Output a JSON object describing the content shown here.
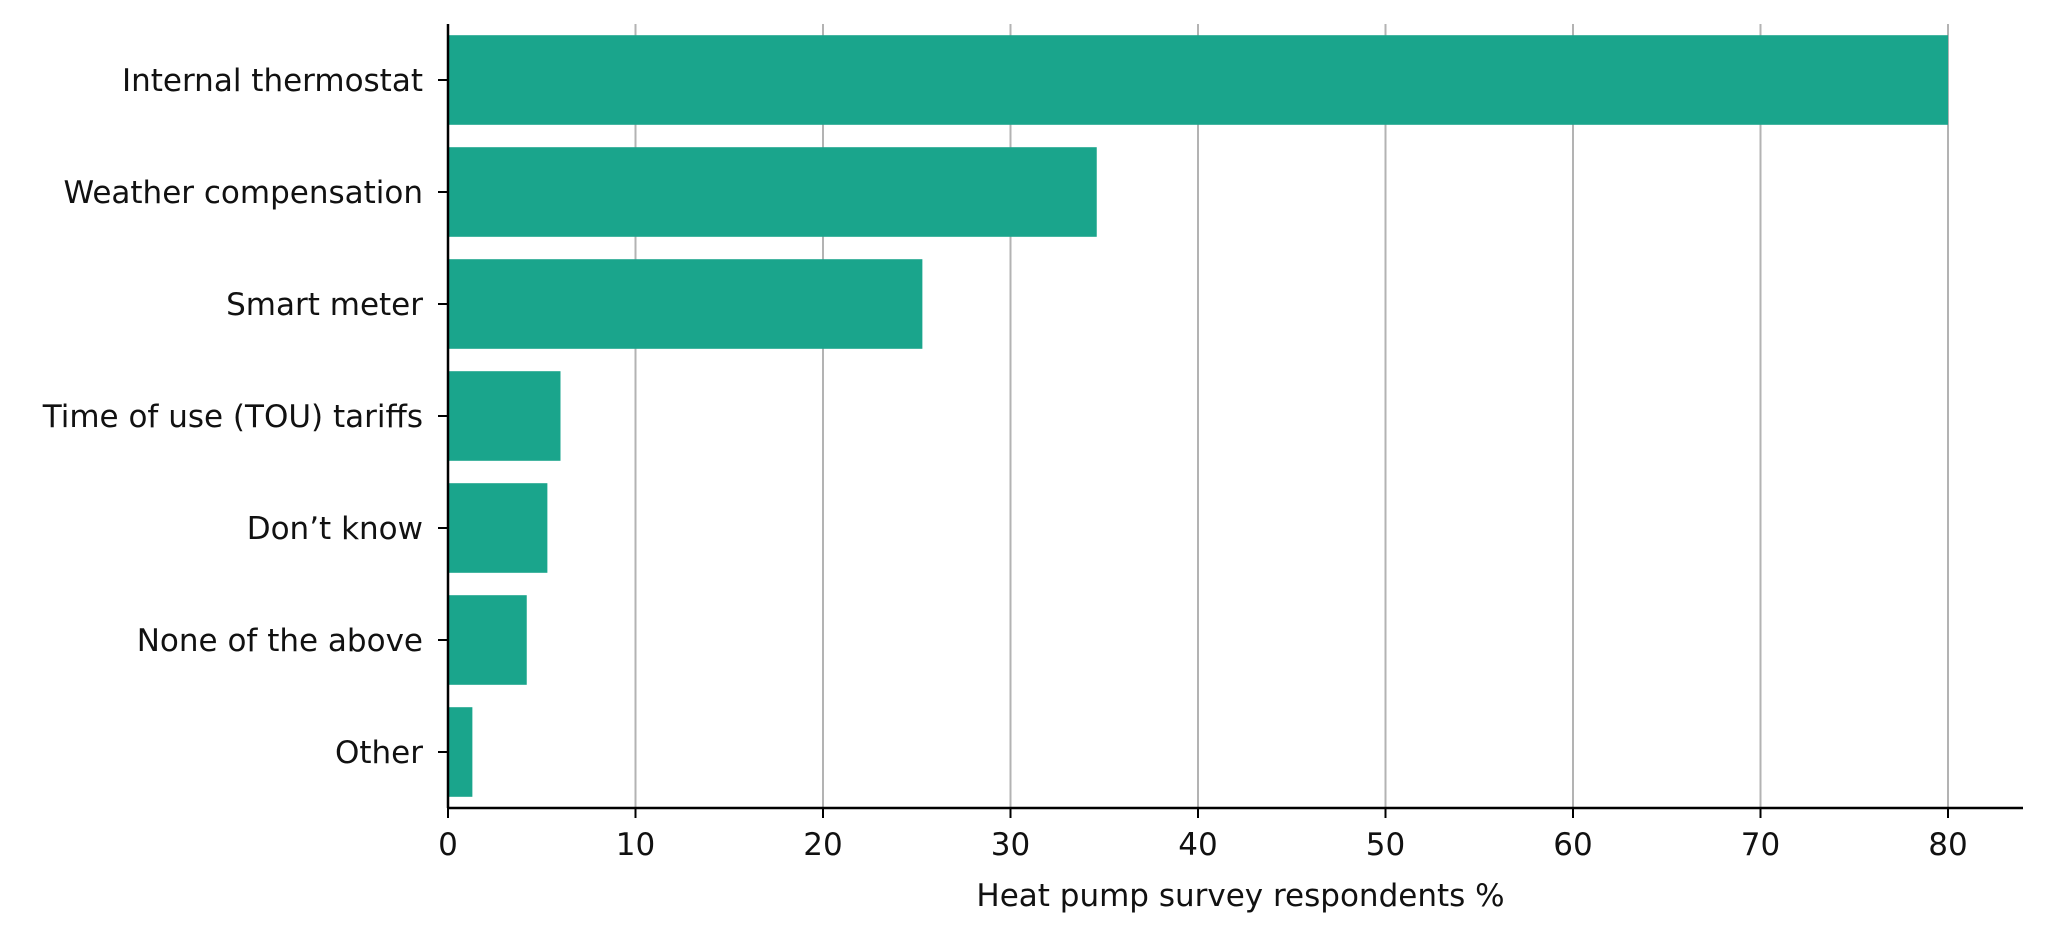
{
  "chart_data": {
    "type": "bar",
    "orientation": "horizontal",
    "categories": [
      "Internal thermostat",
      "Weather compensation",
      "Smart meter",
      "Time of use (TOU) tariffs",
      "Don’t know",
      "None of the above",
      "Other"
    ],
    "values": [
      80,
      34.6,
      25.3,
      6.0,
      5.3,
      4.2,
      1.3
    ],
    "title": "",
    "xlabel": "Heat pump survey respondents %",
    "ylabel": "",
    "xlim": [
      0,
      84
    ],
    "xticks": [
      0,
      10,
      20,
      30,
      40,
      50,
      60,
      70,
      80
    ],
    "grid": "vertical",
    "legend": "none",
    "colors": {
      "bar": "#1aa58c",
      "grid": "#b3b3b3",
      "axis": "#000000"
    }
  }
}
